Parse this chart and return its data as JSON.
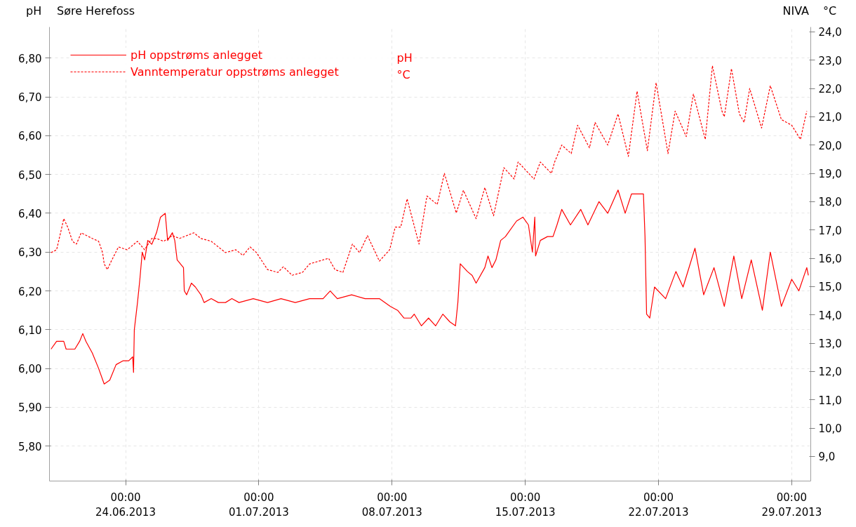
{
  "chart_data": {
    "type": "line",
    "title": "Søre Herefoss",
    "ylabel": "pH",
    "y2label": "°C",
    "annotations": [
      "NIVA",
      "pH",
      "°C"
    ],
    "xlim": [
      "2013-06-20T00:00",
      "2013-07-30T00:00"
    ],
    "xticks": [
      {
        "value": "2013-06-24T00:00",
        "label": "00:00\n24.06.2013"
      },
      {
        "value": "2013-07-01T00:00",
        "label": "00:00\n01.07.2013"
      },
      {
        "value": "2013-07-08T00:00",
        "label": "00:00\n08.07.2013"
      },
      {
        "value": "2013-07-15T00:00",
        "label": "00:00\n15.07.2013"
      },
      {
        "value": "2013-07-22T00:00",
        "label": "00:00\n22.07.2013"
      },
      {
        "value": "2013-07-29T00:00",
        "label": "00:00\n29.07.2013"
      }
    ],
    "ylim": [
      5.71,
      6.88
    ],
    "yticks": [
      {
        "value": 5.8,
        "label": "5,80"
      },
      {
        "value": 5.9,
        "label": "5,90"
      },
      {
        "value": 6.0,
        "label": "6,00"
      },
      {
        "value": 6.1,
        "label": "6,10"
      },
      {
        "value": 6.2,
        "label": "6,20"
      },
      {
        "value": 6.3,
        "label": "6,30"
      },
      {
        "value": 6.4,
        "label": "6,40"
      },
      {
        "value": 6.5,
        "label": "6,50"
      },
      {
        "value": 6.6,
        "label": "6,60"
      },
      {
        "value": 6.7,
        "label": "6,70"
      },
      {
        "value": 6.8,
        "label": "6,80"
      }
    ],
    "y2lim": [
      8.13,
      24.17
    ],
    "y2ticks": [
      {
        "value": 9,
        "label": "9,0"
      },
      {
        "value": 10,
        "label": "10,0"
      },
      {
        "value": 11,
        "label": "11,0"
      },
      {
        "value": 12,
        "label": "12,0"
      },
      {
        "value": 13,
        "label": "13,0"
      },
      {
        "value": 14,
        "label": "14,0"
      },
      {
        "value": 15,
        "label": "15,0"
      },
      {
        "value": 16,
        "label": "16,0"
      },
      {
        "value": 17,
        "label": "17,0"
      },
      {
        "value": 18,
        "label": "18,0"
      },
      {
        "value": 19,
        "label": "19,0"
      },
      {
        "value": 20,
        "label": "20,0"
      },
      {
        "value": 21,
        "label": "21,0"
      },
      {
        "value": 22,
        "label": "22,0"
      },
      {
        "value": 23,
        "label": "23,0"
      },
      {
        "value": 24,
        "label": "24,0"
      }
    ],
    "grid": true,
    "legend": "top left",
    "series": [
      {
        "name": "pH oppstrøms anlegget",
        "color": "#ff0000",
        "line_style": "solid",
        "x": [
          "2013-06-20T02:00",
          "2013-06-20T09:00",
          "2013-06-20T18:00",
          "2013-06-20T21:00",
          "2013-06-21T08:00",
          "2013-06-21T14:00",
          "2013-06-21T18:00",
          "2013-06-21T22:00",
          "2013-06-22T06:00",
          "2013-06-22T14:00",
          "2013-06-22T21:00",
          "2013-06-23T04:00",
          "2013-06-23T12:00",
          "2013-06-23T21:00",
          "2013-06-24T04:00",
          "2013-06-24T09:00",
          "2013-06-24T10:00",
          "2013-06-24T11:00",
          "2013-06-24T15:00",
          "2013-06-24T18:00",
          "2013-06-24T21:00",
          "2013-06-25T00:00",
          "2013-06-25T04:00",
          "2013-06-25T09:00",
          "2013-06-25T15:00",
          "2013-06-25T20:00",
          "2013-06-26T02:00",
          "2013-06-26T05:00",
          "2013-06-26T11:00",
          "2013-06-26T14:00",
          "2013-06-26T17:00",
          "2013-06-26T21:00",
          "2013-06-27T01:00",
          "2013-06-27T02:00",
          "2013-06-27T05:00",
          "2013-06-27T11:00",
          "2013-06-27T16:00",
          "2013-06-27T23:00",
          "2013-06-28T03:00",
          "2013-06-28T12:00",
          "2013-06-28T21:00",
          "2013-06-29T06:00",
          "2013-06-29T14:00",
          "2013-06-29T23:00",
          "2013-06-30T17:00",
          "2013-07-01T11:00",
          "2013-07-02T04:00",
          "2013-07-02T22:00",
          "2013-07-03T16:00",
          "2013-07-04T09:00",
          "2013-07-04T18:00",
          "2013-07-05T03:00",
          "2013-07-05T21:00",
          "2013-07-06T14:00",
          "2013-07-07T08:00",
          "2013-07-07T22:00",
          "2013-07-08T07:00",
          "2013-07-08T15:00",
          "2013-07-09T00:00",
          "2013-07-09T04:00",
          "2013-07-09T13:00",
          "2013-07-09T22:00",
          "2013-07-10T07:00",
          "2013-07-10T16:00",
          "2013-07-11T01:00",
          "2013-07-11T08:00",
          "2013-07-11T11:00",
          "2013-07-11T14:00",
          "2013-07-11T23:00",
          "2013-07-12T05:00",
          "2013-07-12T10:00",
          "2013-07-12T21:00",
          "2013-07-13T01:00",
          "2013-07-13T06:00",
          "2013-07-13T11:00",
          "2013-07-13T17:00",
          "2013-07-13T23:00",
          "2013-07-14T13:00",
          "2013-07-14T21:00",
          "2013-07-15T04:00",
          "2013-07-15T09:00",
          "2013-07-15T12:00",
          "2013-07-15T13:00",
          "2013-07-15T19:00",
          "2013-07-16T04:00",
          "2013-07-16T11:00",
          "2013-07-16T16:00",
          "2013-07-16T22:00",
          "2013-07-17T09:00",
          "2013-07-17T22:00",
          "2013-07-18T07:00",
          "2013-07-18T21:00",
          "2013-07-19T08:00",
          "2013-07-19T21:00",
          "2013-07-20T06:00",
          "2013-07-20T14:00",
          "2013-07-21T05:00",
          "2013-07-21T07:00",
          "2013-07-21T09:00",
          "2013-07-21T13:00",
          "2013-07-21T19:00",
          "2013-07-22T09:00",
          "2013-07-22T22:00",
          "2013-07-23T07:00",
          "2013-07-23T22:00",
          "2013-07-24T09:00",
          "2013-07-24T22:00",
          "2013-07-25T11:00",
          "2013-07-25T23:00",
          "2013-07-26T09:00",
          "2013-07-26T21:00",
          "2013-07-27T11:00",
          "2013-07-27T21:00",
          "2013-07-28T11:00",
          "2013-07-29T00:00",
          "2013-07-29T09:00",
          "2013-07-29T19:00",
          "2013-07-29T21:00"
        ],
        "values": [
          6.05,
          6.07,
          6.07,
          6.05,
          6.05,
          6.07,
          6.09,
          6.07,
          6.04,
          6.0,
          5.96,
          5.97,
          6.01,
          6.02,
          6.02,
          6.03,
          5.99,
          6.1,
          6.17,
          6.23,
          6.3,
          6.28,
          6.33,
          6.32,
          6.35,
          6.39,
          6.4,
          6.33,
          6.35,
          6.33,
          6.28,
          6.27,
          6.26,
          6.2,
          6.19,
          6.22,
          6.21,
          6.19,
          6.17,
          6.18,
          6.17,
          6.17,
          6.18,
          6.17,
          6.18,
          6.17,
          6.18,
          6.17,
          6.18,
          6.18,
          6.2,
          6.18,
          6.19,
          6.18,
          6.18,
          6.16,
          6.15,
          6.13,
          6.13,
          6.14,
          6.11,
          6.13,
          6.11,
          6.14,
          6.12,
          6.11,
          6.17,
          6.27,
          6.25,
          6.24,
          6.22,
          6.26,
          6.29,
          6.26,
          6.28,
          6.33,
          6.34,
          6.38,
          6.39,
          6.37,
          6.3,
          6.39,
          6.29,
          6.33,
          6.34,
          6.34,
          6.37,
          6.41,
          6.37,
          6.41,
          6.37,
          6.43,
          6.4,
          6.46,
          6.4,
          6.45,
          6.45,
          6.34,
          6.14,
          6.13,
          6.21,
          6.18,
          6.25,
          6.21,
          6.31,
          6.19,
          6.26,
          6.16,
          6.29,
          6.18,
          6.28,
          6.15,
          6.3,
          6.16,
          6.23,
          6.2,
          6.26,
          6.24
        ]
      },
      {
        "name": "Vanntemperatur oppstrøms anlegget",
        "color": "#ff0000",
        "line_style": "dashed",
        "axis": "y2",
        "x": [
          "2013-06-20T02:00",
          "2013-06-20T09:00",
          "2013-06-20T14:00",
          "2013-06-20T18:00",
          "2013-06-20T23:00",
          "2013-06-21T05:00",
          "2013-06-21T10:00",
          "2013-06-21T16:00",
          "2013-06-22T06:00",
          "2013-06-22T14:00",
          "2013-06-22T19:00",
          "2013-06-22T21:00",
          "2013-06-23T01:00",
          "2013-06-23T06:00",
          "2013-06-23T15:00",
          "2013-06-24T02:00",
          "2013-06-24T15:00",
          "2013-06-25T00:00",
          "2013-06-25T09:00",
          "2013-06-25T15:00",
          "2013-06-26T00:00",
          "2013-06-26T11:00",
          "2013-06-26T20:00",
          "2013-06-27T05:00",
          "2013-06-27T14:00",
          "2013-06-27T23:00",
          "2013-06-28T12:00",
          "2013-06-28T21:00",
          "2013-06-29T06:00",
          "2013-06-29T19:00",
          "2013-06-30T04:00",
          "2013-06-30T13:00",
          "2013-06-30T21:00",
          "2013-07-01T11:00",
          "2013-07-02T00:00",
          "2013-07-02T07:00",
          "2013-07-02T18:00",
          "2013-07-03T07:00",
          "2013-07-03T16:00",
          "2013-07-04T16:00",
          "2013-07-05T00:00",
          "2013-07-05T10:00",
          "2013-07-05T22:00",
          "2013-07-06T07:00",
          "2013-07-06T17:00",
          "2013-07-07T08:00",
          "2013-07-07T21:00",
          "2013-07-08T04:00",
          "2013-07-08T11:00",
          "2013-07-08T19:00",
          "2013-07-09T10:00",
          "2013-07-09T20:00",
          "2013-07-10T09:00",
          "2013-07-10T18:00",
          "2013-07-11T09:00",
          "2013-07-11T18:00",
          "2013-07-12T10:00",
          "2013-07-12T21:00",
          "2013-07-13T08:00",
          "2013-07-13T21:00",
          "2013-07-14T10:00",
          "2013-07-14T15:00",
          "2013-07-15T11:00",
          "2013-07-15T19:00",
          "2013-07-16T09:00",
          "2013-07-16T13:00",
          "2013-07-16T22:00",
          "2013-07-17T10:00",
          "2013-07-17T18:00",
          "2013-07-18T09:00",
          "2013-07-18T16:00",
          "2013-07-19T08:00",
          "2013-07-19T21:00",
          "2013-07-20T10:00",
          "2013-07-20T21:00",
          "2013-07-21T10:00",
          "2013-07-21T21:00",
          "2013-07-22T12:00",
          "2013-07-22T21:00",
          "2013-07-23T11:00",
          "2013-07-23T20:00",
          "2013-07-24T11:00",
          "2013-07-24T20:00",
          "2013-07-25T08:00",
          "2013-07-25T11:00",
          "2013-07-25T20:00",
          "2013-07-26T06:00",
          "2013-07-26T12:00",
          "2013-07-26T19:00",
          "2013-07-27T10:00",
          "2013-07-27T21:00",
          "2013-07-28T11:00",
          "2013-07-29T00:00",
          "2013-07-29T11:00",
          "2013-07-29T19:00"
        ],
        "values": [
          16.2,
          16.3,
          16.9,
          17.4,
          17.1,
          16.6,
          16.5,
          16.9,
          16.7,
          16.6,
          16.2,
          15.8,
          15.6,
          15.9,
          16.4,
          16.3,
          16.6,
          16.3,
          16.7,
          16.7,
          16.6,
          16.8,
          16.7,
          16.8,
          16.9,
          16.7,
          16.6,
          16.4,
          16.2,
          16.3,
          16.1,
          16.4,
          16.2,
          15.6,
          15.5,
          15.7,
          15.4,
          15.5,
          15.8,
          16.0,
          15.6,
          15.5,
          16.5,
          16.2,
          16.8,
          15.9,
          16.3,
          17.1,
          17.1,
          18.1,
          16.5,
          18.2,
          17.9,
          19.0,
          17.6,
          18.4,
          17.4,
          18.5,
          17.5,
          19.2,
          18.8,
          19.4,
          18.8,
          19.4,
          19.0,
          19.4,
          20.0,
          19.7,
          20.7,
          19.9,
          20.8,
          20.0,
          21.1,
          19.6,
          21.9,
          19.8,
          22.2,
          19.7,
          21.2,
          20.3,
          21.8,
          20.2,
          22.8,
          21.2,
          21.0,
          22.7,
          21.1,
          20.8,
          22.0,
          20.6,
          22.1,
          20.9,
          20.7,
          20.2,
          21.2
        ]
      }
    ]
  }
}
